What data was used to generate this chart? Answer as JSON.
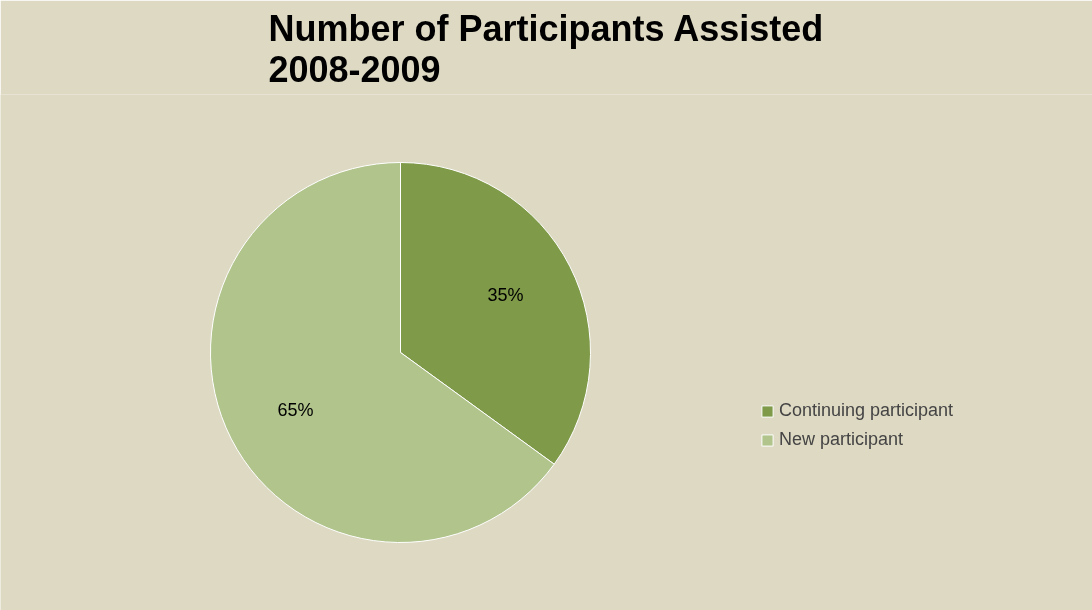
{
  "chart_data": {
    "type": "pie",
    "title": "Number of Participants Assisted\n2008-2009",
    "categories": [
      "Continuing participant",
      "New participant"
    ],
    "values": [
      35,
      65
    ],
    "colors": [
      "#7f9a48",
      "#b0c48c"
    ],
    "value_labels": [
      "35%",
      "65%"
    ],
    "legend": "right"
  }
}
